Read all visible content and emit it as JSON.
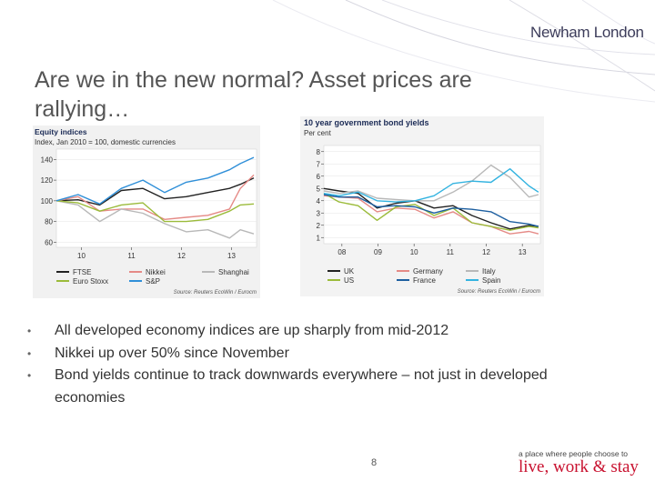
{
  "logo": "Newham London",
  "title": "Are we in the new normal? Asset prices are rallying…",
  "bullets": [
    "All developed economy indices are up sharply from mid-2012",
    "Nikkei up over 50% since November",
    "Bond yields continue to track downwards everywhere – not just in developed economies"
  ],
  "page_number": "8",
  "slogan": {
    "line1": "a place where people choose to",
    "line2": "live, work & stay"
  },
  "colors": {
    "ftse": "#222222",
    "nikkei": "#e58a86",
    "shanghai": "#b8b8b8",
    "eurostoxx": "#9bbb3a",
    "sp": "#2f8fd8",
    "uk": "#222222",
    "germany": "#e58a86",
    "italy": "#b8b8b8",
    "us": "#9bbb3a",
    "france": "#1d5fa0",
    "spain": "#33b3e0",
    "brand": "#c8102e"
  },
  "chart_data": [
    {
      "type": "line",
      "title": "Equity indices",
      "subtitle": "Index, Jan 2010 = 100, domestic currencies",
      "xlabel": "",
      "ylabel": "",
      "x_ticks": [
        "10",
        "11",
        "12",
        "13"
      ],
      "y_ticks": [
        60,
        80,
        100,
        120,
        140
      ],
      "xlim": [
        2009.6,
        2013.3
      ],
      "ylim": [
        55,
        150
      ],
      "x": [
        2009.6,
        2010.0,
        2010.4,
        2010.8,
        2011.2,
        2011.6,
        2012.0,
        2012.4,
        2012.8,
        2013.0,
        2013.25
      ],
      "series": [
        {
          "name": "FTSE",
          "color": "#222222",
          "values": [
            100,
            101,
            96,
            110,
            112,
            102,
            104,
            108,
            112,
            116,
            122
          ]
        },
        {
          "name": "Nikkei",
          "color": "#e58a86",
          "values": [
            100,
            104,
            90,
            92,
            92,
            82,
            84,
            86,
            92,
            112,
            125
          ]
        },
        {
          "name": "Shanghai",
          "color": "#b8b8b8",
          "values": [
            100,
            96,
            80,
            92,
            88,
            78,
            70,
            72,
            64,
            72,
            68
          ]
        },
        {
          "name": "Euro Stoxx",
          "color": "#9bbb3a",
          "values": [
            100,
            98,
            90,
            96,
            98,
            80,
            80,
            82,
            90,
            96,
            97
          ]
        },
        {
          "name": "S&P",
          "color": "#2f8fd8",
          "values": [
            100,
            106,
            97,
            112,
            120,
            108,
            118,
            122,
            130,
            136,
            142
          ]
        }
      ],
      "legend": [
        [
          "FTSE",
          "Nikkei",
          "Shanghai"
        ],
        [
          "Euro Stoxx",
          "S&P"
        ]
      ],
      "source": "Source: Reuters EcoWin / Eurocm"
    },
    {
      "type": "line",
      "title": "10 year government bond yields",
      "subtitle": "Per cent",
      "xlabel": "",
      "ylabel": "",
      "x_ticks": [
        "08",
        "09",
        "10",
        "11",
        "12",
        "13"
      ],
      "y_ticks": [
        1,
        2,
        3,
        4,
        5,
        6,
        7,
        8
      ],
      "xlim": [
        2007.6,
        2013.3
      ],
      "ylim": [
        0.5,
        8.5
      ],
      "x": [
        2007.6,
        2008.0,
        2008.5,
        2009.0,
        2009.5,
        2010.0,
        2010.5,
        2011.0,
        2011.5,
        2012.0,
        2012.5,
        2013.0,
        2013.25
      ],
      "series": [
        {
          "name": "UK",
          "color": "#222222",
          "values": [
            5.0,
            4.8,
            4.6,
            3.4,
            3.8,
            4.0,
            3.4,
            3.6,
            2.8,
            2.2,
            1.7,
            2.0,
            1.9
          ]
        },
        {
          "name": "Germany",
          "color": "#e58a86",
          "values": [
            4.4,
            4.3,
            4.2,
            3.1,
            3.4,
            3.3,
            2.6,
            3.1,
            2.2,
            1.9,
            1.3,
            1.5,
            1.3
          ]
        },
        {
          "name": "Italy",
          "color": "#b8b8b8",
          "values": [
            4.8,
            4.6,
            4.8,
            4.2,
            4.1,
            4.0,
            4.0,
            4.7,
            5.6,
            6.9,
            5.9,
            4.3,
            4.5
          ]
        },
        {
          "name": "US",
          "color": "#9bbb3a",
          "values": [
            4.6,
            3.9,
            3.6,
            2.4,
            3.5,
            3.7,
            2.8,
            3.4,
            2.2,
            1.9,
            1.6,
            1.9,
            1.8
          ]
        },
        {
          "name": "France",
          "color": "#1d5fa0",
          "values": [
            4.5,
            4.3,
            4.3,
            3.5,
            3.6,
            3.5,
            3.0,
            3.4,
            3.3,
            3.1,
            2.3,
            2.1,
            1.9
          ]
        },
        {
          "name": "Spain",
          "color": "#33b3e0",
          "values": [
            4.6,
            4.4,
            4.7,
            4.0,
            3.9,
            4.0,
            4.4,
            5.4,
            5.6,
            5.5,
            6.6,
            5.2,
            4.7
          ]
        }
      ],
      "legend": [
        [
          "UK",
          "Germany",
          "Italy"
        ],
        [
          "US",
          "France",
          "Spain"
        ]
      ],
      "source": "Source: Reuters EcoWin / Eurocm"
    }
  ]
}
